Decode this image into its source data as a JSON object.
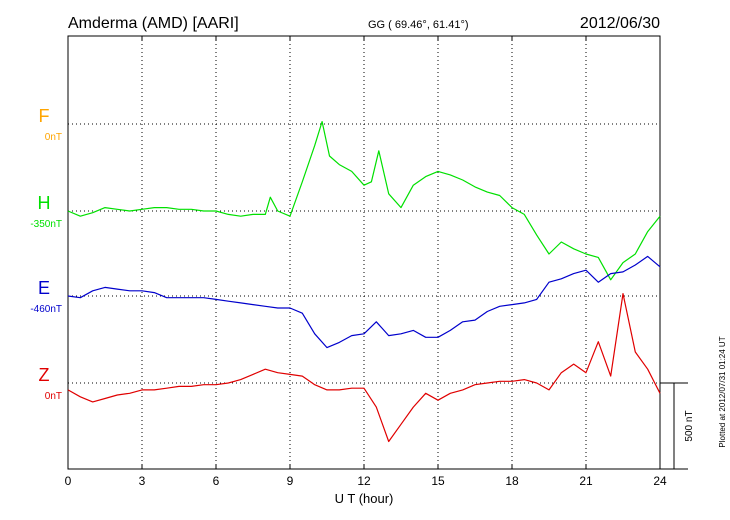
{
  "header": {
    "station": "Amderma (AMD)  [AARI]",
    "coords": "GG ( 69.46°,  61.41°)",
    "date": "2012/06/30"
  },
  "plot_stamp": "Plotted at 2012/07/31 01:24 UT",
  "scale_label": "500 nT",
  "colors": {
    "F": "#ffa500",
    "H": "#00e000",
    "E": "#0000cc",
    "Z": "#e00000",
    "grid": "#000000"
  },
  "chart_data": {
    "type": "line",
    "xlabel": "U T (hour)",
    "xlim": [
      0,
      24
    ],
    "xticks": [
      0,
      3,
      6,
      9,
      12,
      15,
      18,
      21,
      24
    ],
    "scale_nT": 500,
    "baselines": [
      {
        "component": "F",
        "label": "F",
        "offset": "0nT"
      },
      {
        "component": "H",
        "label": "H",
        "offset": "-350nT"
      },
      {
        "component": "E",
        "label": "E",
        "offset": "-460nT"
      },
      {
        "component": "Z",
        "label": "Z",
        "offset": "0nT"
      }
    ],
    "series": [
      {
        "name": "H",
        "color": "#00e000",
        "x": [
          0,
          0.5,
          1,
          1.5,
          2,
          2.5,
          3,
          3.5,
          4,
          4.5,
          5,
          5.5,
          6,
          6.5,
          7,
          7.5,
          8,
          8.2,
          8.5,
          9,
          9.5,
          10,
          10.3,
          10.6,
          11,
          11.5,
          12,
          12.3,
          12.6,
          13,
          13.5,
          14,
          14.5,
          15,
          15.5,
          16,
          16.5,
          17,
          17.5,
          18,
          18.5,
          19,
          19.5,
          20,
          20.5,
          21,
          21.5,
          22,
          22.5,
          23,
          23.5,
          24
        ],
        "y": [
          0,
          -30,
          -10,
          20,
          10,
          0,
          10,
          20,
          20,
          10,
          10,
          0,
          0,
          -20,
          -30,
          -20,
          -20,
          80,
          0,
          -30,
          170,
          380,
          520,
          320,
          270,
          230,
          150,
          170,
          350,
          100,
          20,
          150,
          200,
          230,
          210,
          180,
          140,
          110,
          90,
          20,
          -20,
          -140,
          -250,
          -180,
          -220,
          -250,
          -270,
          -400,
          -300,
          -250,
          -120,
          -30
        ]
      },
      {
        "name": "E",
        "color": "#0000cc",
        "x": [
          0,
          0.5,
          1,
          1.5,
          2,
          2.5,
          3,
          3.5,
          4,
          4.5,
          5,
          5.5,
          6,
          6.5,
          7,
          7.5,
          8,
          8.5,
          9,
          9.5,
          10,
          10.5,
          11,
          11.5,
          12,
          12.5,
          13,
          13.5,
          14,
          14.5,
          15,
          15.5,
          16,
          16.5,
          17,
          17.5,
          18,
          18.5,
          19,
          19.5,
          20,
          20.5,
          21,
          21.5,
          22,
          22.5,
          23,
          23.5,
          24
        ],
        "y": [
          0,
          -10,
          30,
          50,
          40,
          30,
          30,
          20,
          -10,
          -10,
          -10,
          -10,
          -20,
          -30,
          -40,
          -50,
          -60,
          -70,
          -70,
          -100,
          -220,
          -300,
          -270,
          -230,
          -220,
          -150,
          -230,
          -220,
          -200,
          -240,
          -240,
          -200,
          -150,
          -140,
          -90,
          -60,
          -50,
          -40,
          -20,
          80,
          100,
          130,
          150,
          80,
          130,
          140,
          180,
          230,
          170
        ]
      },
      {
        "name": "Z",
        "color": "#e00000",
        "x": [
          0,
          0.5,
          1,
          1.5,
          2,
          2.5,
          3,
          3.5,
          4,
          4.5,
          5,
          5.5,
          6,
          6.5,
          7,
          7.5,
          8,
          8.5,
          9,
          9.5,
          10,
          10.5,
          11,
          11.5,
          12,
          12.5,
          13,
          13.5,
          14,
          14.5,
          15,
          15.5,
          16,
          16.5,
          17,
          17.5,
          18,
          18.5,
          19,
          19.5,
          20,
          20.5,
          21,
          21.5,
          22,
          22.5,
          23,
          23.5,
          24
        ],
        "y": [
          -40,
          -80,
          -110,
          -90,
          -70,
          -60,
          -40,
          -40,
          -30,
          -20,
          -20,
          -10,
          -10,
          0,
          20,
          50,
          80,
          60,
          50,
          40,
          -10,
          -40,
          -40,
          -30,
          -30,
          -140,
          -340,
          -240,
          -140,
          -60,
          -100,
          -60,
          -40,
          -10,
          0,
          10,
          10,
          20,
          0,
          -40,
          60,
          110,
          60,
          240,
          40,
          520,
          180,
          80,
          -60
        ]
      }
    ]
  }
}
